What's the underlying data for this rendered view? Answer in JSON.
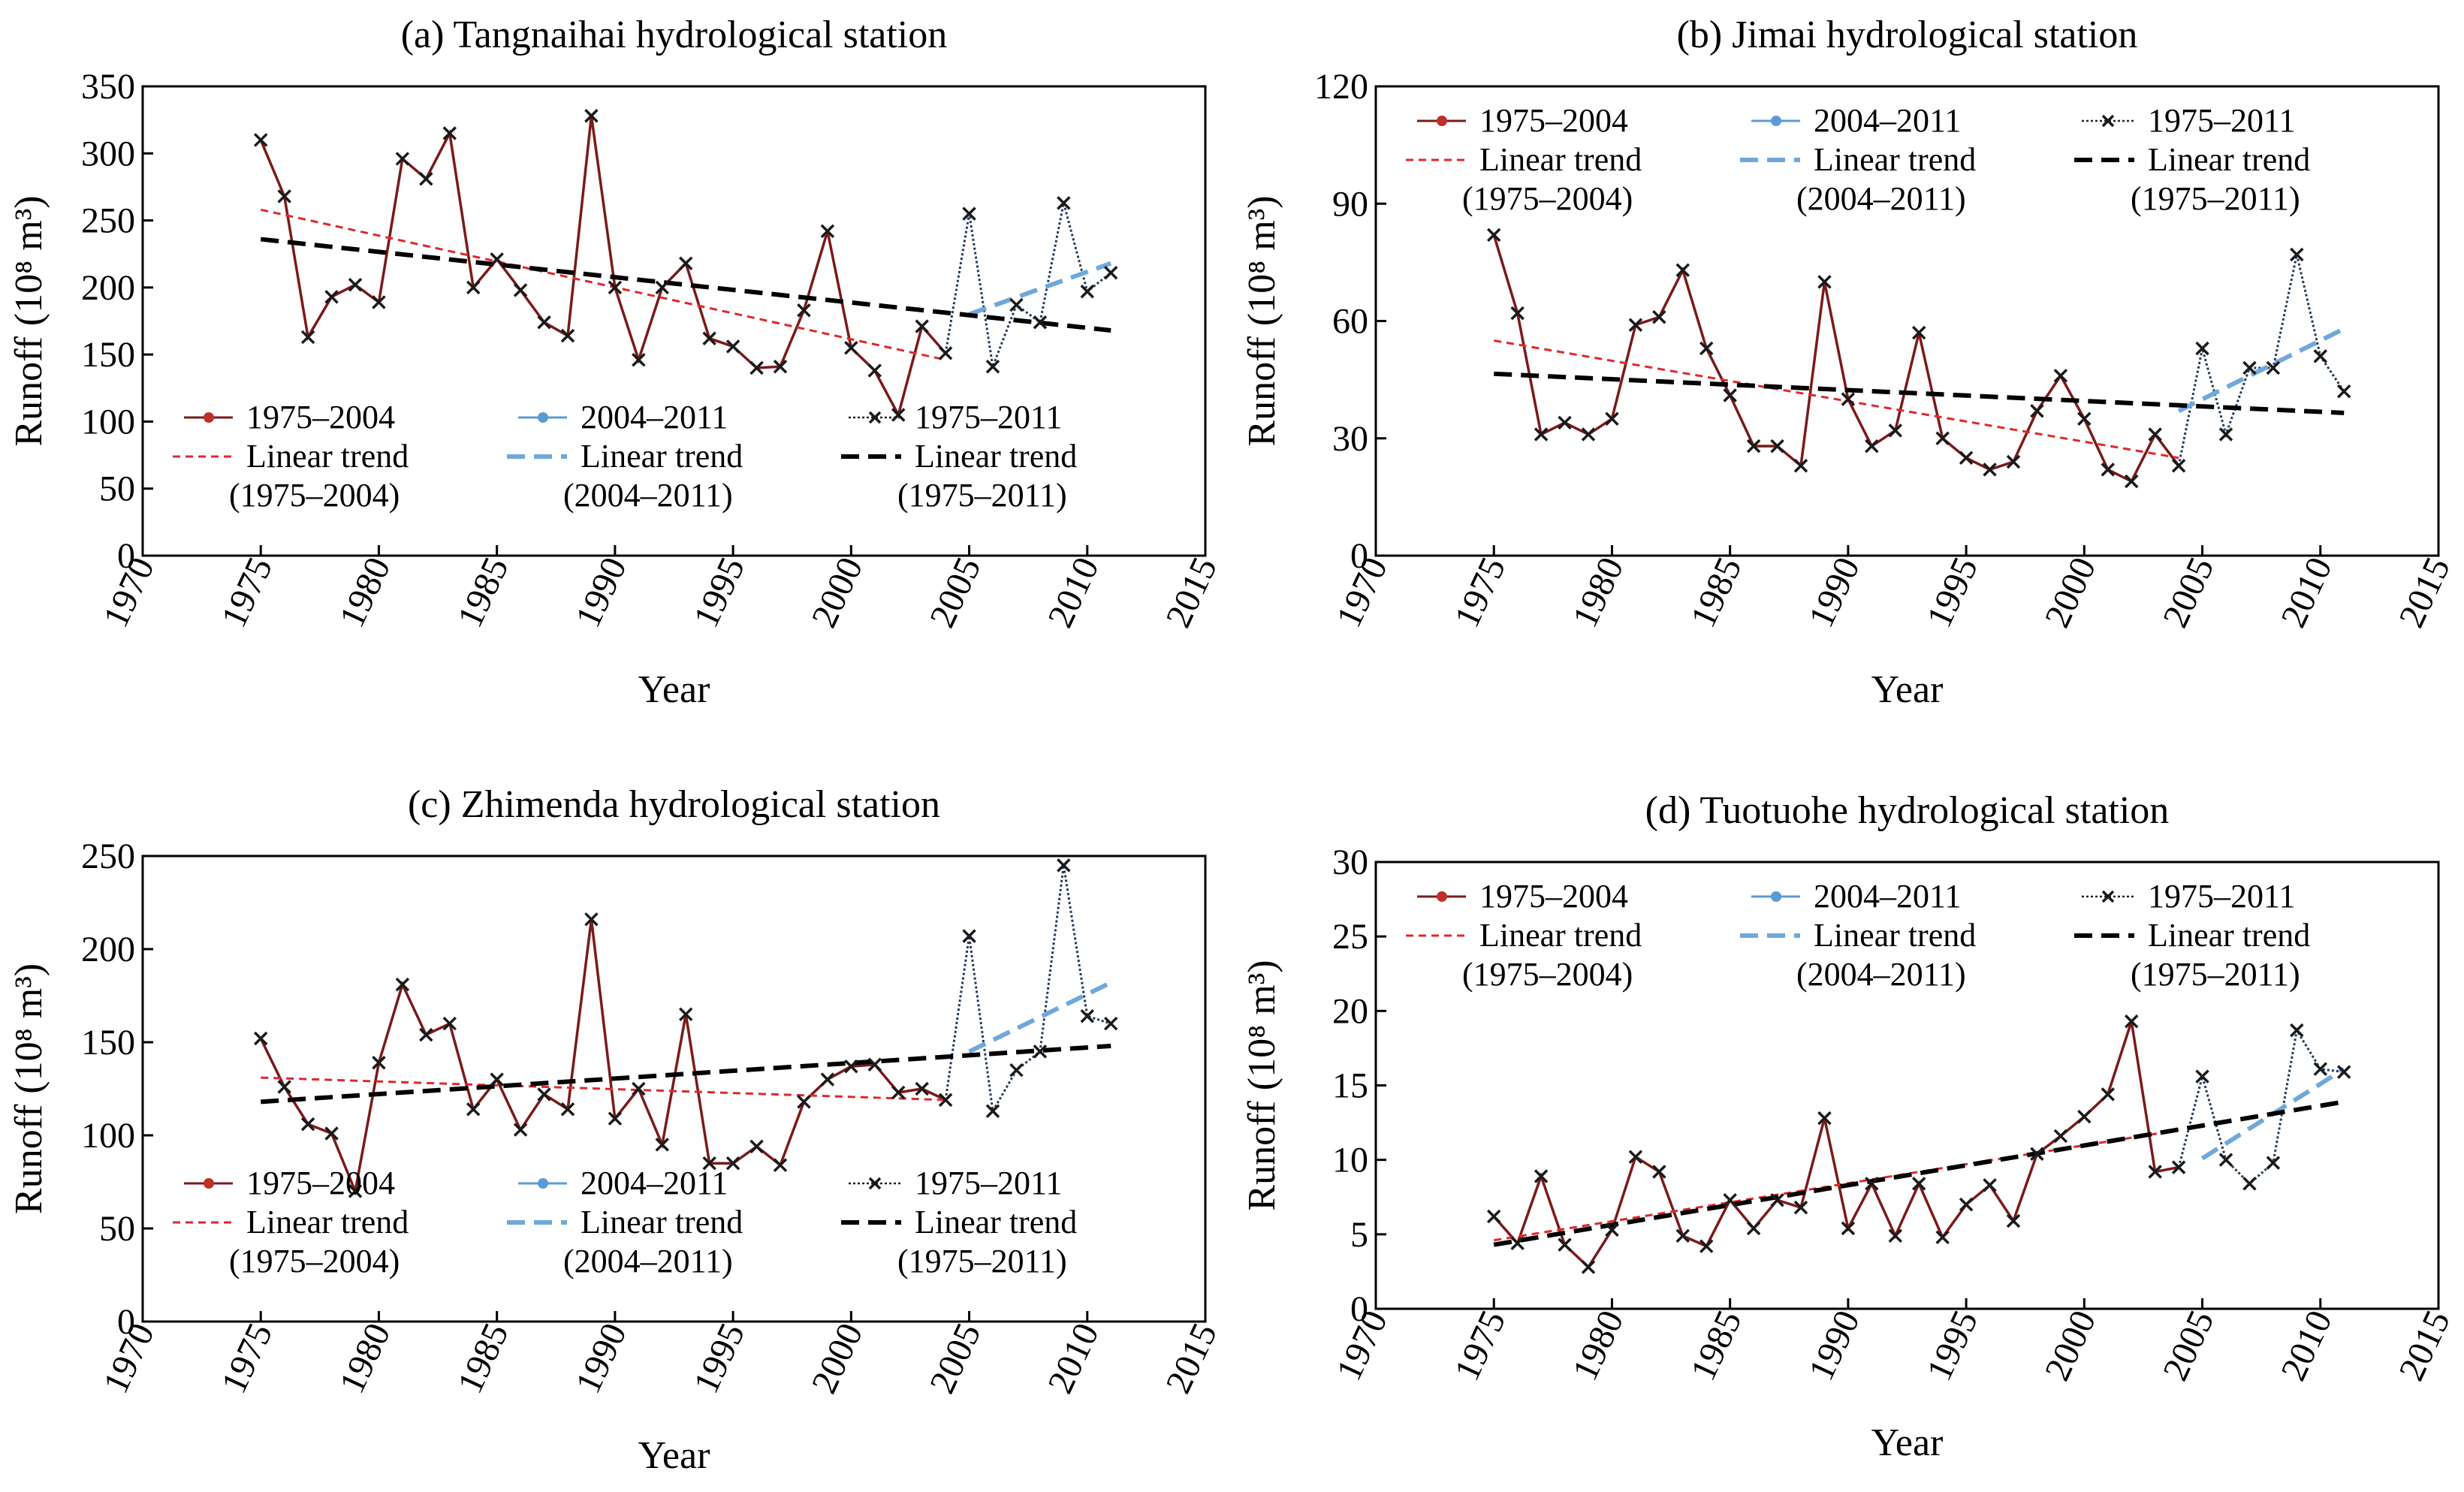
{
  "chart_data": [
    {
      "type": "line",
      "title": "(a) Tangnaihai hydrological station",
      "xlabel": "Year",
      "ylabel_main": "Runoff",
      "ylabel_unit": "(10⁸ m³)",
      "xlim": [
        1970,
        2015
      ],
      "ylim": [
        0,
        350
      ],
      "xticks": [
        "1970",
        "1975",
        "1980",
        "1985",
        "1990",
        "1995",
        "2000",
        "2005",
        "2010",
        "2015"
      ],
      "yticks": [
        "0",
        "50",
        "100",
        "150",
        "200",
        "250",
        "300",
        "350"
      ],
      "x": [
        1975,
        1976,
        1977,
        1978,
        1979,
        1980,
        1981,
        1982,
        1983,
        1984,
        1985,
        1986,
        1987,
        1988,
        1989,
        1990,
        1991,
        1992,
        1993,
        1994,
        1995,
        1996,
        1997,
        1998,
        1999,
        2000,
        2001,
        2002,
        2003,
        2004,
        2005,
        2006,
        2007,
        2008,
        2009,
        2010,
        2011
      ],
      "values": [
        310,
        268,
        163,
        193,
        202,
        189,
        296,
        281,
        315,
        200,
        221,
        198,
        174,
        164,
        328,
        200,
        146,
        200,
        218,
        162,
        156,
        140,
        141,
        183,
        242,
        155,
        138,
        105,
        171,
        151,
        255,
        141,
        187,
        174,
        263,
        197,
        211
      ],
      "split_year": 2004,
      "trends": [
        {
          "name": "(1975–2004)",
          "x": [
            1975,
            2004
          ],
          "y": [
            258,
            146
          ]
        },
        {
          "name": "(2004–2011)",
          "x": [
            2005,
            2011
          ],
          "y": [
            180,
            218
          ]
        },
        {
          "name": "(1975–2011)",
          "x": [
            1975,
            2011
          ],
          "y": [
            236,
            168
          ]
        }
      ],
      "legend": [
        {
          "label": "1975–2004"
        },
        {
          "label": "2004–2011"
        },
        {
          "label": "1975–2011"
        },
        {
          "label": "Linear trend",
          "sub": "(1975–2004)"
        },
        {
          "label": "Linear trend",
          "sub": "(2004–2011)"
        },
        {
          "label": "Linear trend",
          "sub": "(1975–2011)"
        }
      ],
      "legend_position": "bottom"
    },
    {
      "type": "line",
      "title": "(b) Jimai hydrological station",
      "xlabel": "Year",
      "ylabel_main": "Runoff",
      "ylabel_unit": "(10⁸ m³)",
      "xlim": [
        1970,
        2015
      ],
      "ylim": [
        0,
        120
      ],
      "xticks": [
        "1970",
        "1975",
        "1980",
        "1985",
        "1990",
        "1995",
        "2000",
        "2005",
        "2010",
        "2015"
      ],
      "yticks": [
        "0",
        "30",
        "60",
        "90",
        "120"
      ],
      "x": [
        1975,
        1976,
        1977,
        1978,
        1979,
        1980,
        1981,
        1982,
        1983,
        1984,
        1985,
        1986,
        1987,
        1988,
        1989,
        1990,
        1991,
        1992,
        1993,
        1994,
        1995,
        1996,
        1997,
        1998,
        1999,
        2000,
        2001,
        2002,
        2003,
        2004,
        2005,
        2006,
        2007,
        2008,
        2009,
        2010,
        2011
      ],
      "values": [
        82,
        62,
        31,
        34,
        31,
        35,
        59,
        61,
        73,
        53,
        41,
        28,
        28,
        23,
        70,
        40,
        28,
        32,
        57,
        30,
        25,
        22,
        24,
        37,
        46,
        35,
        22,
        19,
        31,
        23,
        53,
        31,
        48,
        48,
        77,
        51,
        42
      ],
      "split_year": 2004,
      "trends": [
        {
          "name": "(1975–2004)",
          "x": [
            1975,
            2004
          ],
          "y": [
            55,
            25
          ]
        },
        {
          "name": "(2004–2011)",
          "x": [
            2004,
            2011
          ],
          "y": [
            37,
            58
          ]
        },
        {
          "name": "(1975–2011)",
          "x": [
            1975,
            2011
          ],
          "y": [
            46.5,
            36.5
          ]
        }
      ],
      "legend": [
        {
          "label": "1975–2004"
        },
        {
          "label": "2004–2011"
        },
        {
          "label": "1975–2011"
        },
        {
          "label": "Linear trend",
          "sub": "(1975–2004)"
        },
        {
          "label": "Linear trend",
          "sub": "(2004–2011)"
        },
        {
          "label": "Linear trend",
          "sub": "(1975–2011)"
        }
      ],
      "legend_position": "top"
    },
    {
      "type": "line",
      "title": "(c) Zhimenda hydrological station",
      "xlabel": "Year",
      "ylabel_main": "Runoff",
      "ylabel_unit": "(10⁸ m³)",
      "xlim": [
        1970,
        2015
      ],
      "ylim": [
        0,
        250
      ],
      "xticks": [
        "1970",
        "1975",
        "1980",
        "1985",
        "1990",
        "1995",
        "2000",
        "2005",
        "2010",
        "2015"
      ],
      "yticks": [
        "0",
        "50",
        "100",
        "150",
        "200",
        "250"
      ],
      "x": [
        1975,
        1976,
        1977,
        1978,
        1979,
        1980,
        1981,
        1982,
        1983,
        1984,
        1985,
        1986,
        1987,
        1988,
        1989,
        1990,
        1991,
        1992,
        1993,
        1994,
        1995,
        1996,
        1997,
        1998,
        1999,
        2000,
        2001,
        2002,
        2003,
        2004,
        2005,
        2006,
        2007,
        2008,
        2009,
        2010,
        2011
      ],
      "values": [
        152,
        126,
        106,
        101,
        70,
        139,
        181,
        154,
        160,
        114,
        130,
        103,
        122,
        114,
        216,
        109,
        125,
        95,
        165,
        85,
        85,
        94,
        84,
        118,
        130,
        137,
        138,
        123,
        125,
        119,
        207,
        113,
        135,
        145,
        245,
        164,
        160
      ],
      "split_year": 2004,
      "trends": [
        {
          "name": "(1975–2004)",
          "x": [
            1975,
            2004
          ],
          "y": [
            131,
            119
          ]
        },
        {
          "name": "(2004–2011)",
          "x": [
            2005,
            2011
          ],
          "y": [
            145,
            182
          ]
        },
        {
          "name": "(1975–2011)",
          "x": [
            1975,
            2011
          ],
          "y": [
            118,
            148
          ]
        }
      ],
      "legend": [
        {
          "label": "1975–2004"
        },
        {
          "label": "2004–2011"
        },
        {
          "label": "1975–2011"
        },
        {
          "label": "Linear trend",
          "sub": "(1975–2004)"
        },
        {
          "label": "Linear trend",
          "sub": "(2004–2011)"
        },
        {
          "label": "Linear trend",
          "sub": "(1975–2011)"
        }
      ],
      "legend_position": "bottom"
    },
    {
      "type": "line",
      "title": "(d) Tuotuohe hydrological station",
      "xlabel": "Year",
      "ylabel_main": "Runoff",
      "ylabel_unit": "(10⁸ m³)",
      "xlim": [
        1970,
        2015
      ],
      "ylim": [
        0,
        30
      ],
      "xticks": [
        "1970",
        "1975",
        "1980",
        "1985",
        "1990",
        "1995",
        "2000",
        "2005",
        "2010",
        "2015"
      ],
      "yticks": [
        "0",
        "5",
        "10",
        "15",
        "20",
        "25",
        "30"
      ],
      "x": [
        1975,
        1976,
        1977,
        1978,
        1979,
        1980,
        1981,
        1982,
        1983,
        1984,
        1985,
        1986,
        1987,
        1988,
        1989,
        1990,
        1991,
        1992,
        1993,
        1994,
        1995,
        1996,
        1997,
        1998,
        1999,
        2000,
        2001,
        2002,
        2003,
        2004,
        2005,
        2006,
        2007,
        2008,
        2009,
        2010,
        2011
      ],
      "values": [
        6.2,
        4.4,
        8.9,
        4.3,
        2.8,
        5.3,
        10.2,
        9.2,
        4.9,
        4.2,
        7.3,
        5.4,
        7.3,
        6.8,
        12.8,
        5.4,
        8.4,
        4.9,
        8.4,
        4.8,
        7.0,
        8.3,
        5.9,
        10.4,
        11.6,
        12.9,
        14.4,
        19.3,
        9.2,
        9.5,
        15.6,
        10.0,
        8.4,
        9.8,
        18.7,
        16.1,
        15.9
      ],
      "split_year": 2004,
      "trends": [
        {
          "name": "(1975–2004)",
          "x": [
            1975,
            2004
          ],
          "y": [
            4.6,
            12.0
          ]
        },
        {
          "name": "(2004–2011)",
          "x": [
            2005,
            2011
          ],
          "y": [
            10.1,
            16.1
          ]
        },
        {
          "name": "(1975–2011)",
          "x": [
            1975,
            2011
          ],
          "y": [
            4.3,
            13.9
          ]
        }
      ],
      "legend": [
        {
          "label": "1975–2004"
        },
        {
          "label": "2004–2011"
        },
        {
          "label": "1975–2011"
        },
        {
          "label": "Linear trend",
          "sub": "(1975–2004)"
        },
        {
          "label": "Linear trend",
          "sub": "(2004–2011)"
        },
        {
          "label": "Linear trend",
          "sub": "(1975–2011)"
        }
      ],
      "legend_position": "top"
    }
  ],
  "colors": {
    "series_early": "#7a1a1a",
    "marker_early": "#c0302a",
    "series_late": "#1f3a5a",
    "marker_late": "#5b9bd5",
    "series_full": "#222222",
    "trend_early": "#e0282b",
    "trend_late": "#6fa8dc",
    "trend_full": "#000000"
  }
}
